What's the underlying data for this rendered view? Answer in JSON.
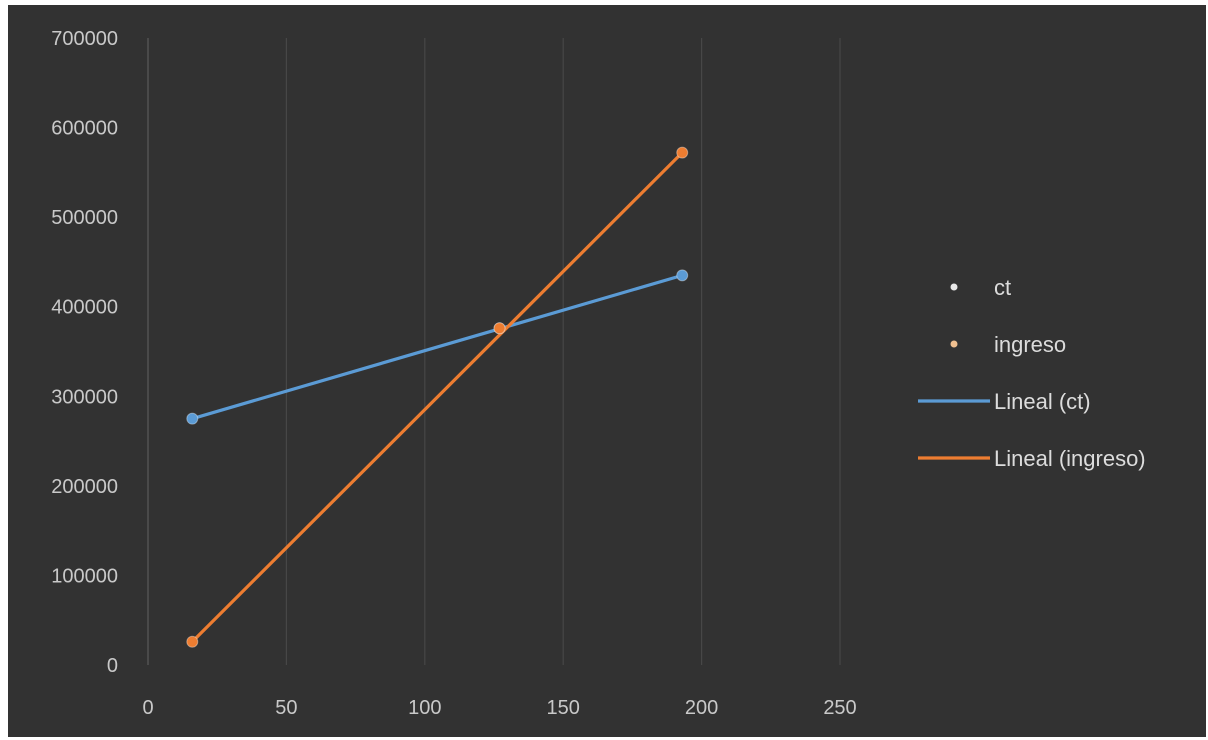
{
  "chart_data": {
    "type": "scatter",
    "title": "",
    "xlabel": "",
    "ylabel": "",
    "xlim": [
      0,
      250
    ],
    "ylim": [
      0,
      700000
    ],
    "x_ticks": [
      0,
      50,
      100,
      150,
      200,
      250
    ],
    "y_ticks": [
      0,
      100000,
      200000,
      300000,
      400000,
      500000,
      600000,
      700000
    ],
    "grid": "vertical",
    "legend_position": "right",
    "series": [
      {
        "name": "ct",
        "kind": "points",
        "color": "#5b9bd5",
        "points": [
          [
            16,
            275000
          ],
          [
            127,
            376000
          ],
          [
            193,
            435000
          ]
        ]
      },
      {
        "name": "ingreso",
        "kind": "points",
        "color": "#ed7d31",
        "points": [
          [
            16,
            26000
          ],
          [
            127,
            376000
          ],
          [
            193,
            572000
          ]
        ]
      },
      {
        "name": "Lineal (ct)",
        "kind": "trendline",
        "color": "#5b9bd5",
        "endpoints": [
          [
            16,
            275000
          ],
          [
            193,
            435000
          ]
        ]
      },
      {
        "name": "Lineal (ingreso)",
        "kind": "trendline",
        "color": "#ed7d31",
        "endpoints": [
          [
            16,
            26000
          ],
          [
            193,
            572000
          ]
        ]
      }
    ],
    "legend": [
      {
        "label": "ct",
        "marker": "dot",
        "color": "#e8e8e8"
      },
      {
        "label": "ingreso",
        "marker": "dot",
        "color": "#f0c090"
      },
      {
        "label": "Lineal (ct)",
        "marker": "line",
        "color": "#5b9bd5"
      },
      {
        "label": "Lineal (ingreso)",
        "marker": "line",
        "color": "#ed7d31"
      }
    ]
  }
}
